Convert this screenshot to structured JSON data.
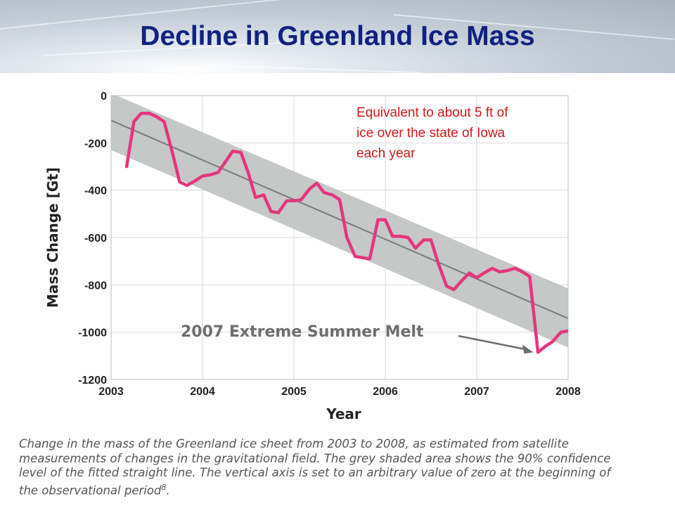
{
  "slide": {
    "title": "Decline in Greenland Ice Mass",
    "annotation_lines": [
      "Equivalent to about 5 ft of",
      "ice over the state of Iowa",
      "each year"
    ],
    "caption_lines": [
      "Change in the mass of the Greenland ice sheet from 2003 to 2008, as estimated from satellite",
      "measurements of changes in the gravitational field. The grey shaded area shows the 90% confidence",
      "level of the fitted straight line. The vertical axis is set to an arbitrary value of zero at the beginning of",
      "the observational period"
    ],
    "caption_superscript": "8",
    "caption_end": "."
  },
  "chart_data": {
    "type": "line",
    "xlabel": "Year",
    "ylabel": "Mass Change [Gt]",
    "xlim": [
      2003,
      2008
    ],
    "ylim": [
      -1200,
      0
    ],
    "x_ticks": [
      2003,
      2004,
      2005,
      2006,
      2007,
      2008
    ],
    "y_ticks": [
      0,
      -200,
      -400,
      -600,
      -800,
      -1000,
      -1200
    ],
    "grid": true,
    "annotation": {
      "text": "2007 Extreme Summer Melt",
      "x": 2007.62,
      "y": -1085
    },
    "trend": {
      "x": [
        2003,
        2008
      ],
      "y": [
        -105,
        -942
      ]
    },
    "confidence_band": {
      "x": [
        2003,
        2008
      ],
      "upper": [
        10,
        -815
      ],
      "lower": [
        -230,
        -1065
      ]
    },
    "series": [
      {
        "color": "#e3367e",
        "x": [
          2003.17,
          2003.25,
          2003.33,
          2003.42,
          2003.5,
          2003.58,
          2003.67,
          2003.75,
          2003.83,
          2003.92,
          2004.0,
          2004.08,
          2004.17,
          2004.25,
          2004.33,
          2004.42,
          2004.5,
          2004.58,
          2004.67,
          2004.75,
          2004.83,
          2004.92,
          2005.0,
          2005.08,
          2005.17,
          2005.25,
          2005.33,
          2005.42,
          2005.5,
          2005.58,
          2005.67,
          2005.75,
          2005.83,
          2005.92,
          2006.0,
          2006.08,
          2006.17,
          2006.25,
          2006.33,
          2006.42,
          2006.5,
          2006.58,
          2006.67,
          2006.75,
          2006.83,
          2006.92,
          2007.0,
          2007.08,
          2007.17,
          2007.25,
          2007.33,
          2007.42,
          2007.5,
          2007.58,
          2007.67,
          2007.75,
          2007.83,
          2007.92,
          2008.0
        ],
        "y": [
          -300,
          -110,
          -75,
          -75,
          -90,
          -110,
          -240,
          -365,
          -380,
          -360,
          -340,
          -335,
          -325,
          -280,
          -235,
          -240,
          -325,
          -430,
          -420,
          -490,
          -495,
          -445,
          -445,
          -440,
          -395,
          -370,
          -410,
          -420,
          -440,
          -600,
          -680,
          -685,
          -690,
          -525,
          -525,
          -595,
          -595,
          -600,
          -645,
          -610,
          -610,
          -710,
          -805,
          -820,
          -785,
          -750,
          -770,
          -750,
          -730,
          -745,
          -740,
          -730,
          -745,
          -765,
          -1085,
          -1060,
          -1040,
          -1000,
          -995
        ]
      }
    ]
  }
}
